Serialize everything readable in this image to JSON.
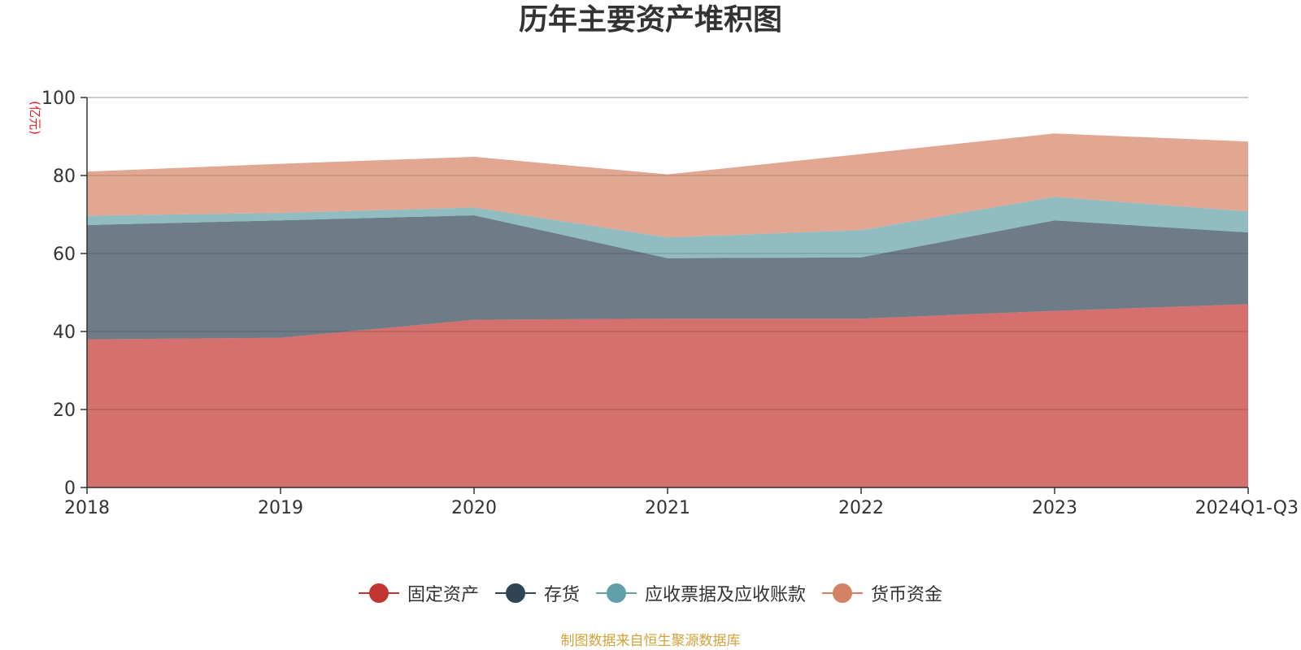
{
  "chart_data": {
    "type": "area",
    "stacked": true,
    "title": "历年主要资产堆积图",
    "ylabel": "(亿元)",
    "xlabel": "",
    "ylim": [
      0,
      100
    ],
    "yticks": [
      0,
      20,
      40,
      60,
      80,
      100
    ],
    "categories": [
      "2018",
      "2019",
      "2020",
      "2021",
      "2022",
      "2023",
      "2024Q1-Q3"
    ],
    "series": [
      {
        "name": "固定资产",
        "color": "#c23531",
        "values": [
          38.0,
          38.4,
          43.0,
          43.3,
          43.3,
          45.3,
          47.0
        ]
      },
      {
        "name": "存货",
        "color": "#2f4554",
        "values": [
          29.3,
          30.1,
          26.8,
          15.5,
          15.7,
          23.2,
          18.4
        ]
      },
      {
        "name": "应收票据及应收账款",
        "color": "#61a0a8",
        "values": [
          2.4,
          1.9,
          2.0,
          5.3,
          7.0,
          6.0,
          5.4
        ]
      },
      {
        "name": "货币资金",
        "color": "#d48265",
        "values": [
          11.3,
          12.6,
          13.0,
          16.2,
          19.5,
          16.3,
          17.9
        ]
      }
    ],
    "legend_position": "bottom-center",
    "grid": true
  },
  "footer": {
    "source": "制图数据来自恒生聚源数据库"
  }
}
